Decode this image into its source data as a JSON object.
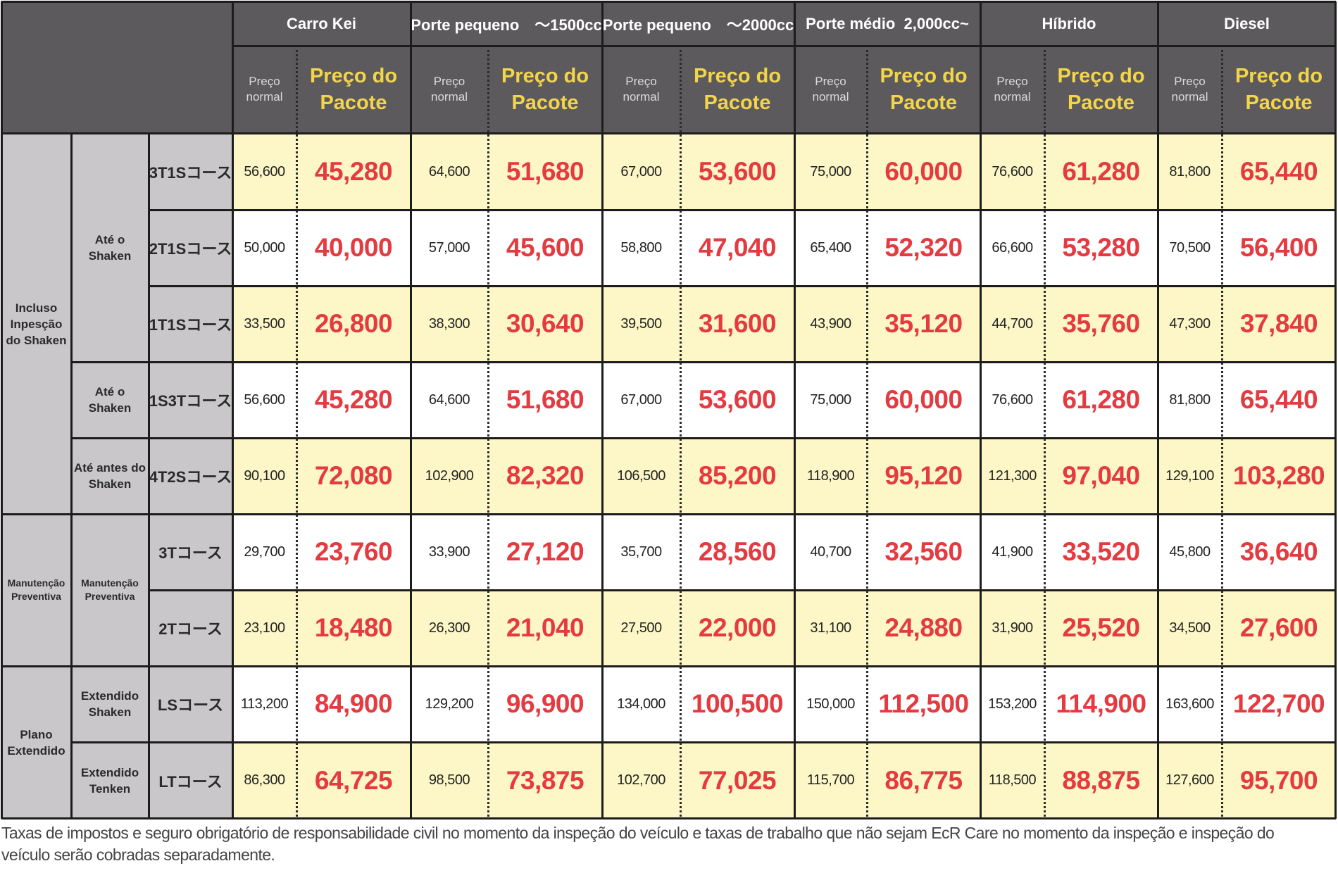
{
  "header": {
    "groups": [
      {
        "title": "Carro Kei"
      },
      {
        "title": "Porte pequeno　～1500cc"
      },
      {
        "title": "Porte pequeno　～2000cc"
      },
      {
        "title": "Porte médio  2,000cc~"
      },
      {
        "title": "Híbrido"
      },
      {
        "title": "Diesel"
      }
    ],
    "sub_normal": "Preço\nnormal",
    "sub_normal_line1": "Preço",
    "sub_normal_line2": "normal",
    "sub_pack_line1": "Preço do",
    "sub_pack_line2": "Pacote"
  },
  "categories": [
    {
      "label_line1": "Incluso",
      "label_line2": "Inpesção",
      "label_line3": "do Shaken"
    },
    {
      "label_line1": "Manutenção",
      "label_line2": "Preventiva"
    },
    {
      "label_line1": "Plano",
      "label_line2": "Extendido"
    }
  ],
  "subcategories": [
    {
      "line1": "Até o",
      "line2": "Shaken"
    },
    {
      "line1": "Até o",
      "line2": "Shaken"
    },
    {
      "line1": "Até antes do",
      "line2": "Shaken"
    },
    {
      "line1": "Manutenção",
      "line2": "Preventiva"
    },
    {
      "line1": "Extendido",
      "line2": "Shaken"
    },
    {
      "line1": "Extendido",
      "line2": "Tenken"
    }
  ],
  "rows": [
    {
      "course": "3T1Sコース",
      "bg": "y",
      "values": [
        [
          "56,600",
          "45,280"
        ],
        [
          "64,600",
          "51,680"
        ],
        [
          "67,000",
          "53,600"
        ],
        [
          "75,000",
          "60,000"
        ],
        [
          "76,600",
          "61,280"
        ],
        [
          "81,800",
          "65,440"
        ]
      ]
    },
    {
      "course": "2T1Sコース",
      "bg": "w",
      "values": [
        [
          "50,000",
          "40,000"
        ],
        [
          "57,000",
          "45,600"
        ],
        [
          "58,800",
          "47,040"
        ],
        [
          "65,400",
          "52,320"
        ],
        [
          "66,600",
          "53,280"
        ],
        [
          "70,500",
          "56,400"
        ]
      ]
    },
    {
      "course": "1T1Sコース",
      "bg": "y",
      "values": [
        [
          "33,500",
          "26,800"
        ],
        [
          "38,300",
          "30,640"
        ],
        [
          "39,500",
          "31,600"
        ],
        [
          "43,900",
          "35,120"
        ],
        [
          "44,700",
          "35,760"
        ],
        [
          "47,300",
          "37,840"
        ]
      ]
    },
    {
      "course": "1S3Tコース",
      "bg": "w",
      "values": [
        [
          "56,600",
          "45,280"
        ],
        [
          "64,600",
          "51,680"
        ],
        [
          "67,000",
          "53,600"
        ],
        [
          "75,000",
          "60,000"
        ],
        [
          "76,600",
          "61,280"
        ],
        [
          "81,800",
          "65,440"
        ]
      ]
    },
    {
      "course": "4T2Sコース",
      "bg": "y",
      "values": [
        [
          "90,100",
          "72,080"
        ],
        [
          "102,900",
          "82,320"
        ],
        [
          "106,500",
          "85,200"
        ],
        [
          "118,900",
          "95,120"
        ],
        [
          "121,300",
          "97,040"
        ],
        [
          "129,100",
          "103,280"
        ]
      ]
    },
    {
      "course": "3Tコース",
      "bg": "w",
      "values": [
        [
          "29,700",
          "23,760"
        ],
        [
          "33,900",
          "27,120"
        ],
        [
          "35,700",
          "28,560"
        ],
        [
          "40,700",
          "32,560"
        ],
        [
          "41,900",
          "33,520"
        ],
        [
          "45,800",
          "36,640"
        ]
      ]
    },
    {
      "course": "2Tコース",
      "bg": "y",
      "values": [
        [
          "23,100",
          "18,480"
        ],
        [
          "26,300",
          "21,040"
        ],
        [
          "27,500",
          "22,000"
        ],
        [
          "31,100",
          "24,880"
        ],
        [
          "31,900",
          "25,520"
        ],
        [
          "34,500",
          "27,600"
        ]
      ]
    },
    {
      "course": "LSコース",
      "bg": "w",
      "values": [
        [
          "113,200",
          "84,900"
        ],
        [
          "129,200",
          "96,900"
        ],
        [
          "134,000",
          "100,500"
        ],
        [
          "150,000",
          "112,500"
        ],
        [
          "153,200",
          "114,900"
        ],
        [
          "163,600",
          "122,700"
        ]
      ]
    },
    {
      "course": "LTコース",
      "bg": "y",
      "values": [
        [
          "86,300",
          "64,725"
        ],
        [
          "98,500",
          "73,875"
        ],
        [
          "102,700",
          "77,025"
        ],
        [
          "115,700",
          "86,775"
        ],
        [
          "118,500",
          "88,875"
        ],
        [
          "127,600",
          "95,700"
        ]
      ]
    }
  ],
  "footnote": "Taxas de impostos e seguro obrigatório de responsabilidade civil no momento da inspeção do veículo e taxas de trabalho que não sejam EcR Care no momento da inspeção e inspeção do veículo serão cobradas separadamente.",
  "colors": {
    "header_bg": "#5d5a5e",
    "label_bg": "#c9c7ca",
    "row_yellow": "#fdf7c8",
    "row_white": "#ffffff",
    "package_price": "#e43a40",
    "package_header": "#f3d54a"
  }
}
